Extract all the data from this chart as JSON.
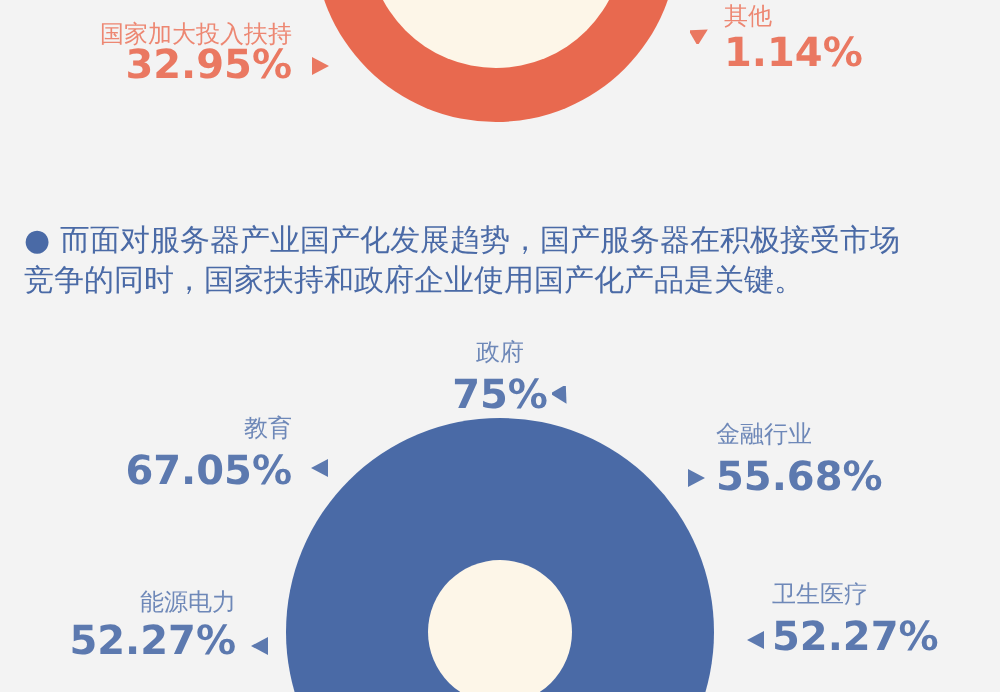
{
  "chart_data": [
    {
      "type": "other",
      "categories": [
        "国家加大投入扶持",
        "其他"
      ],
      "values": [
        32.95,
        1.14
      ],
      "value_labels": [
        "32.95%",
        "1.14%"
      ],
      "color": "#e8694f"
    },
    {
      "type": "other",
      "title": "● 而面对服务器产业国产化发展趋势，国产服务器在积极接受市场竞争的同时，国家扶持和政府企业使用国产化产品是关键。",
      "categories": [
        "政府",
        "教育",
        "金融行业",
        "能源电力",
        "卫生医疗"
      ],
      "values": [
        75,
        67.05,
        55.68,
        52.27,
        52.27
      ],
      "value_labels": [
        "75%",
        "67.05%",
        "55.68%",
        "52.27%",
        "52.27%"
      ],
      "color": "#4a6aa6"
    }
  ]
}
